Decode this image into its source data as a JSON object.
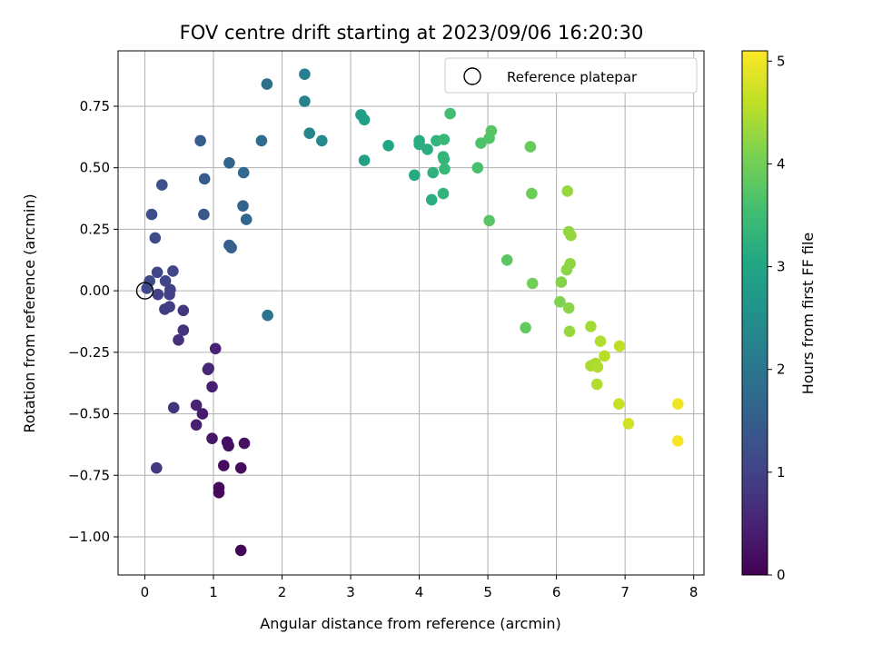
{
  "chart_data": {
    "type": "scatter",
    "title": "FOV centre drift starting at 2023/09/06 16:20:30",
    "xlabel": "Angular distance from reference (arcmin)",
    "ylabel": "Rotation from reference (arcmin)",
    "xlim": [
      -0.39,
      8.15
    ],
    "ylim": [
      -1.155,
      0.975
    ],
    "xticks": [
      0,
      1,
      2,
      3,
      4,
      5,
      6,
      7,
      8
    ],
    "xtick_labels": [
      "0",
      "1",
      "2",
      "3",
      "4",
      "5",
      "6",
      "7",
      "8"
    ],
    "yticks": [
      -1.0,
      -0.75,
      -0.5,
      -0.25,
      0.0,
      0.25,
      0.5,
      0.75
    ],
    "ytick_labels": [
      "−1.00",
      "−0.75",
      "−0.50",
      "−0.25",
      "0.00",
      "0.25",
      "0.50",
      "0.75"
    ],
    "grid": true,
    "legend": {
      "placement": "top-right",
      "label": "Reference platepar"
    },
    "reference_point": {
      "x": 0,
      "y": 0
    },
    "colorbar": {
      "label": "Hours from first FF file",
      "range": [
        0,
        5.1
      ],
      "ticks": [
        0,
        1,
        2,
        3,
        4,
        5
      ],
      "tick_labels": [
        "0",
        "1",
        "2",
        "3",
        "4",
        "5"
      ],
      "colormap": "viridis"
    },
    "points": [
      {
        "x": 1.4,
        "y": -1.055,
        "t": 0.05
      },
      {
        "x": 1.08,
        "y": -0.82,
        "t": 0.1
      },
      {
        "x": 1.08,
        "y": -0.8,
        "t": 0.12
      },
      {
        "x": 1.15,
        "y": -0.71,
        "t": 0.15
      },
      {
        "x": 1.4,
        "y": -0.72,
        "t": 0.18
      },
      {
        "x": 1.2,
        "y": -0.615,
        "t": 0.2
      },
      {
        "x": 1.22,
        "y": -0.63,
        "t": 0.22
      },
      {
        "x": 1.45,
        "y": -0.62,
        "t": 0.25
      },
      {
        "x": 0.98,
        "y": -0.6,
        "t": 0.3
      },
      {
        "x": 0.84,
        "y": -0.5,
        "t": 0.4
      },
      {
        "x": 0.75,
        "y": -0.545,
        "t": 0.45
      },
      {
        "x": 0.75,
        "y": -0.465,
        "t": 0.5
      },
      {
        "x": 0.98,
        "y": -0.39,
        "t": 0.45
      },
      {
        "x": 0.92,
        "y": -0.32,
        "t": 0.5
      },
      {
        "x": 0.93,
        "y": -0.315,
        "t": 0.55
      },
      {
        "x": 1.03,
        "y": -0.235,
        "t": 0.5
      },
      {
        "x": 0.42,
        "y": -0.475,
        "t": 0.75
      },
      {
        "x": 0.49,
        "y": -0.2,
        "t": 0.7
      },
      {
        "x": 0.56,
        "y": -0.16,
        "t": 0.75
      },
      {
        "x": 0.56,
        "y": -0.08,
        "t": 0.8
      },
      {
        "x": 0.17,
        "y": -0.72,
        "t": 0.85
      },
      {
        "x": 0.29,
        "y": -0.075,
        "t": 0.9
      },
      {
        "x": 0.36,
        "y": -0.065,
        "t": 0.92
      },
      {
        "x": 0.36,
        "y": -0.015,
        "t": 0.95
      },
      {
        "x": 0.37,
        "y": 0.005,
        "t": 0.98
      },
      {
        "x": 0.19,
        "y": -0.015,
        "t": 1.0
      },
      {
        "x": 0.3,
        "y": 0.04,
        "t": 1.02
      },
      {
        "x": 0.18,
        "y": 0.075,
        "t": 1.05
      },
      {
        "x": 0.41,
        "y": 0.08,
        "t": 1.05
      },
      {
        "x": 0.03,
        "y": 0.01,
        "t": 1.1
      },
      {
        "x": 0.07,
        "y": 0.04,
        "t": 1.12
      },
      {
        "x": 0.15,
        "y": 0.215,
        "t": 1.15
      },
      {
        "x": 0.1,
        "y": 0.31,
        "t": 1.2
      },
      {
        "x": 0.25,
        "y": 0.43,
        "t": 1.25
      },
      {
        "x": 0.86,
        "y": 0.31,
        "t": 1.4
      },
      {
        "x": 0.87,
        "y": 0.455,
        "t": 1.45
      },
      {
        "x": 0.81,
        "y": 0.61,
        "t": 1.5
      },
      {
        "x": 1.23,
        "y": 0.185,
        "t": 1.55
      },
      {
        "x": 1.26,
        "y": 0.175,
        "t": 1.58
      },
      {
        "x": 1.23,
        "y": 0.52,
        "t": 1.6
      },
      {
        "x": 1.43,
        "y": 0.345,
        "t": 1.65
      },
      {
        "x": 1.48,
        "y": 0.29,
        "t": 1.7
      },
      {
        "x": 1.44,
        "y": 0.48,
        "t": 1.72
      },
      {
        "x": 1.7,
        "y": 0.61,
        "t": 1.8
      },
      {
        "x": 1.78,
        "y": 0.84,
        "t": 1.9
      },
      {
        "x": 1.79,
        "y": -0.1,
        "t": 1.95
      },
      {
        "x": 2.33,
        "y": 0.88,
        "t": 2.2
      },
      {
        "x": 2.33,
        "y": 0.77,
        "t": 2.25
      },
      {
        "x": 2.4,
        "y": 0.64,
        "t": 2.3
      },
      {
        "x": 2.58,
        "y": 0.61,
        "t": 2.4
      },
      {
        "x": 3.15,
        "y": 0.715,
        "t": 2.8
      },
      {
        "x": 3.2,
        "y": 0.695,
        "t": 2.85
      },
      {
        "x": 3.2,
        "y": 0.53,
        "t": 2.9
      },
      {
        "x": 3.55,
        "y": 0.59,
        "t": 3.0
      },
      {
        "x": 3.93,
        "y": 0.47,
        "t": 3.1
      },
      {
        "x": 4.0,
        "y": 0.61,
        "t": 3.15
      },
      {
        "x": 4.0,
        "y": 0.595,
        "t": 3.18
      },
      {
        "x": 4.12,
        "y": 0.575,
        "t": 3.2
      },
      {
        "x": 4.18,
        "y": 0.37,
        "t": 3.2
      },
      {
        "x": 4.2,
        "y": 0.48,
        "t": 3.25
      },
      {
        "x": 4.25,
        "y": 0.61,
        "t": 3.3
      },
      {
        "x": 4.35,
        "y": 0.395,
        "t": 3.3
      },
      {
        "x": 4.35,
        "y": 0.545,
        "t": 3.35
      },
      {
        "x": 4.36,
        "y": 0.535,
        "t": 3.35
      },
      {
        "x": 4.36,
        "y": 0.615,
        "t": 3.4
      },
      {
        "x": 4.37,
        "y": 0.495,
        "t": 3.4
      },
      {
        "x": 4.45,
        "y": 0.72,
        "t": 3.55
      },
      {
        "x": 4.85,
        "y": 0.5,
        "t": 3.6
      },
      {
        "x": 4.9,
        "y": 0.6,
        "t": 3.65
      },
      {
        "x": 5.02,
        "y": 0.62,
        "t": 3.7
      },
      {
        "x": 5.05,
        "y": 0.65,
        "t": 3.75
      },
      {
        "x": 5.02,
        "y": 0.285,
        "t": 3.75
      },
      {
        "x": 5.28,
        "y": 0.125,
        "t": 3.8
      },
      {
        "x": 5.55,
        "y": -0.15,
        "t": 3.85
      },
      {
        "x": 5.62,
        "y": 0.585,
        "t": 3.9
      },
      {
        "x": 5.64,
        "y": 0.395,
        "t": 3.95
      },
      {
        "x": 5.65,
        "y": 0.03,
        "t": 4.0
      },
      {
        "x": 6.05,
        "y": -0.045,
        "t": 4.1
      },
      {
        "x": 6.07,
        "y": 0.035,
        "t": 4.15
      },
      {
        "x": 6.15,
        "y": 0.085,
        "t": 4.2
      },
      {
        "x": 6.18,
        "y": -0.07,
        "t": 4.2
      },
      {
        "x": 6.18,
        "y": 0.24,
        "t": 4.25
      },
      {
        "x": 6.2,
        "y": 0.11,
        "t": 4.25
      },
      {
        "x": 6.21,
        "y": 0.225,
        "t": 4.28
      },
      {
        "x": 6.19,
        "y": -0.165,
        "t": 4.3
      },
      {
        "x": 6.16,
        "y": 0.405,
        "t": 4.3
      },
      {
        "x": 6.5,
        "y": -0.145,
        "t": 4.4
      },
      {
        "x": 6.5,
        "y": -0.305,
        "t": 4.45
      },
      {
        "x": 6.57,
        "y": -0.295,
        "t": 4.45
      },
      {
        "x": 6.6,
        "y": -0.31,
        "t": 4.48
      },
      {
        "x": 6.59,
        "y": -0.38,
        "t": 4.5
      },
      {
        "x": 6.64,
        "y": -0.205,
        "t": 4.5
      },
      {
        "x": 6.7,
        "y": -0.265,
        "t": 4.55
      },
      {
        "x": 6.91,
        "y": -0.46,
        "t": 4.65
      },
      {
        "x": 6.92,
        "y": -0.225,
        "t": 4.6
      },
      {
        "x": 7.05,
        "y": -0.54,
        "t": 4.75
      },
      {
        "x": 7.77,
        "y": -0.46,
        "t": 5.0
      },
      {
        "x": 7.77,
        "y": -0.61,
        "t": 5.05
      }
    ]
  }
}
